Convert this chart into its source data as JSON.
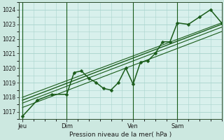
{
  "bg_color": "#cce8e0",
  "plot_bg_color": "#d8f0ec",
  "grid_color": "#a8d4cc",
  "line_color": "#1a5c1a",
  "ylabel": "Pression niveau de la mer( hPa )",
  "ylim": [
    1016.5,
    1024.5
  ],
  "yticks": [
    1017,
    1018,
    1019,
    1020,
    1021,
    1022,
    1023,
    1024
  ],
  "xtick_labels": [
    "Jeu",
    "Dim",
    "Ven",
    "Sam"
  ],
  "xtick_positions": [
    0,
    24,
    60,
    84
  ],
  "vline_positions": [
    0,
    24,
    60,
    84
  ],
  "xlim": [
    -2,
    108
  ],
  "series_main": {
    "x": [
      0,
      8,
      16,
      24,
      28,
      32,
      36,
      40,
      44,
      48,
      52,
      56,
      60,
      64,
      68,
      72,
      76,
      80,
      84,
      90,
      96,
      102,
      108
    ],
    "y": [
      1016.7,
      1017.8,
      1018.2,
      1018.2,
      1019.7,
      1019.8,
      1019.3,
      1019.0,
      1018.6,
      1018.5,
      1019.0,
      1020.0,
      1018.9,
      1020.4,
      1020.5,
      1021.0,
      1021.8,
      1021.8,
      1023.1,
      1023.0,
      1023.5,
      1024.0,
      1023.1
    ],
    "marker": "D",
    "markersize": 2.5,
    "linewidth": 1.1
  },
  "series_trend": [
    {
      "x": [
        0,
        108
      ],
      "y": [
        1017.8,
        1023.0
      ],
      "linewidth": 1.0
    },
    {
      "x": [
        0,
        108
      ],
      "y": [
        1018.0,
        1023.1
      ],
      "linewidth": 0.8
    },
    {
      "x": [
        0,
        108
      ],
      "y": [
        1017.6,
        1022.8
      ],
      "linewidth": 0.8
    },
    {
      "x": [
        0,
        108
      ],
      "y": [
        1017.3,
        1022.5
      ],
      "linewidth": 0.8
    }
  ]
}
